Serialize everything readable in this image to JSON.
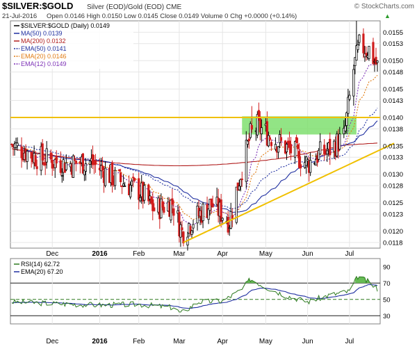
{
  "header": {
    "symbol": "$SILVER:$GOLD",
    "description": "Silver (EOD)/Gold (EOD) CME",
    "watermark": "© StockCharts.com",
    "date": "21-Jul-2016",
    "ohlc_text": "Open 0.0146  High 0.0150  Low 0.0145  Close 0.0149  Volume 0  Chg +0.0000 (+0.14%)",
    "change_arrow": "▲"
  },
  "legend": [
    {
      "label": "$SILVER:$GOLD (Daily) 0.0149",
      "color": "#000000",
      "style": "solid",
      "icon": "price-bars-icon"
    },
    {
      "label": "MA(50) 0.0139",
      "color": "#1f2fa0",
      "style": "solid",
      "icon": "line-icon"
    },
    {
      "label": "MA(200) 0.0132",
      "color": "#b01c1c",
      "style": "solid",
      "icon": "line-icon"
    },
    {
      "label": "EMA(50) 0.0141",
      "color": "#1f2fa0",
      "style": "dotted",
      "icon": "dotted-line-icon"
    },
    {
      "label": "EMA(20) 0.0146",
      "color": "#e07a10",
      "style": "dotted",
      "icon": "dotted-line-icon"
    },
    {
      "label": "EMA(12) 0.0149",
      "color": "#7b2fb5",
      "style": "dotted",
      "icon": "dotted-line-icon"
    }
  ],
  "rsi_legend": [
    {
      "label": "RSI(14) 62.72",
      "color": "#2d7a1f"
    },
    {
      "label": "EMA(20) 67.20",
      "color": "#1f2fa0"
    }
  ],
  "colors": {
    "up": "#000000",
    "down": "#d01c1c",
    "support_line": "#f0c000",
    "highlight_box": "#77dd66",
    "rsi": "#2d7a1f",
    "rsi_fill": "#66bb55"
  },
  "chart_data": {
    "type": "candlestick",
    "title": "$SILVER:$GOLD",
    "price_axis": {
      "ylim": [
        0.0117,
        0.0157
      ],
      "ticks": [
        "0.0155",
        "0.0153",
        "0.0150",
        "0.0148",
        "0.0145",
        "0.0143",
        "0.0140",
        "0.0138",
        "0.0135",
        "0.0133",
        "0.0130",
        "0.0128",
        "0.0125",
        "0.0123",
        "0.0120",
        "0.0118"
      ]
    },
    "x_axis": {
      "start": "2015-11-02",
      "end": "2016-07-21",
      "ticks": [
        {
          "label": "Dec",
          "date": "2015-12-01"
        },
        {
          "label": "2016",
          "date": "2016-01-04",
          "bold": true
        },
        {
          "label": "Feb",
          "date": "2016-02-01"
        },
        {
          "label": "Mar",
          "date": "2016-03-01"
        },
        {
          "label": "Apr",
          "date": "2016-04-01"
        },
        {
          "label": "May",
          "date": "2016-05-02"
        },
        {
          "label": "Jun",
          "date": "2016-06-01"
        },
        {
          "label": "Jul",
          "date": "2016-07-01"
        }
      ]
    },
    "anchors": [
      {
        "date": "2015-11-02",
        "close": 0.01352
      },
      {
        "date": "2015-11-20",
        "close": 0.0133
      },
      {
        "date": "2015-12-10",
        "close": 0.01318
      },
      {
        "date": "2015-12-28",
        "close": 0.01322
      },
      {
        "date": "2016-01-15",
        "close": 0.01292
      },
      {
        "date": "2016-02-01",
        "close": 0.01272
      },
      {
        "date": "2016-02-12",
        "close": 0.01238
      },
      {
        "date": "2016-02-25",
        "close": 0.0125
      },
      {
        "date": "2016-03-03",
        "close": 0.01198
      },
      {
        "date": "2016-03-10",
        "close": 0.01218
      },
      {
        "date": "2016-03-24",
        "close": 0.01248
      },
      {
        "date": "2016-04-06",
        "close": 0.01218
      },
      {
        "date": "2016-04-14",
        "close": 0.01302
      },
      {
        "date": "2016-04-21",
        "close": 0.01368
      },
      {
        "date": "2016-04-26",
        "close": 0.01385
      },
      {
        "date": "2016-05-10",
        "close": 0.01358
      },
      {
        "date": "2016-05-20",
        "close": 0.01342
      },
      {
        "date": "2016-06-01",
        "close": 0.01318
      },
      {
        "date": "2016-06-09",
        "close": 0.01335
      },
      {
        "date": "2016-06-16",
        "close": 0.01342
      },
      {
        "date": "2016-06-27",
        "close": 0.01365
      },
      {
        "date": "2016-07-04",
        "close": 0.01485
      },
      {
        "date": "2016-07-08",
        "close": 0.01525
      },
      {
        "date": "2016-07-15",
        "close": 0.0152
      },
      {
        "date": "2016-07-21",
        "close": 0.0149
      }
    ],
    "spikes": [
      {
        "date": "2016-03-01",
        "low": 0.0118
      },
      {
        "date": "2016-04-22",
        "high": 0.0142
      },
      {
        "date": "2016-07-06",
        "high": 0.0157
      }
    ],
    "annotations": {
      "horizontal_line": 0.014,
      "support_line": [
        {
          "date": "2016-03-04",
          "value": 0.0118
        },
        {
          "date": "2016-07-29",
          "value": 0.0135
        }
      ],
      "highlight_box": {
        "date_start": "2016-04-15",
        "date_end": "2016-07-06",
        "low": 0.0137,
        "high": 0.01402
      }
    },
    "rsi": {
      "ylim": [
        20,
        100
      ],
      "ticks": [
        "90",
        "70",
        "50",
        "30"
      ],
      "levels": [
        70,
        50,
        30
      ],
      "anchors": [
        {
          "date": "2015-11-02",
          "value": 47
        },
        {
          "date": "2015-12-01",
          "value": 45
        },
        {
          "date": "2016-01-04",
          "value": 43
        },
        {
          "date": "2016-02-01",
          "value": 44
        },
        {
          "date": "2016-02-26",
          "value": 40
        },
        {
          "date": "2016-03-02",
          "value": 33
        },
        {
          "date": "2016-03-15",
          "value": 47
        },
        {
          "date": "2016-04-01",
          "value": 48
        },
        {
          "date": "2016-04-15",
          "value": 62
        },
        {
          "date": "2016-04-21",
          "value": 75
        },
        {
          "date": "2016-05-02",
          "value": 65
        },
        {
          "date": "2016-05-16",
          "value": 55
        },
        {
          "date": "2016-06-01",
          "value": 47
        },
        {
          "date": "2016-06-16",
          "value": 55
        },
        {
          "date": "2016-07-01",
          "value": 60
        },
        {
          "date": "2016-07-07",
          "value": 78
        },
        {
          "date": "2016-07-14",
          "value": 72
        },
        {
          "date": "2016-07-21",
          "value": 63
        }
      ]
    }
  }
}
